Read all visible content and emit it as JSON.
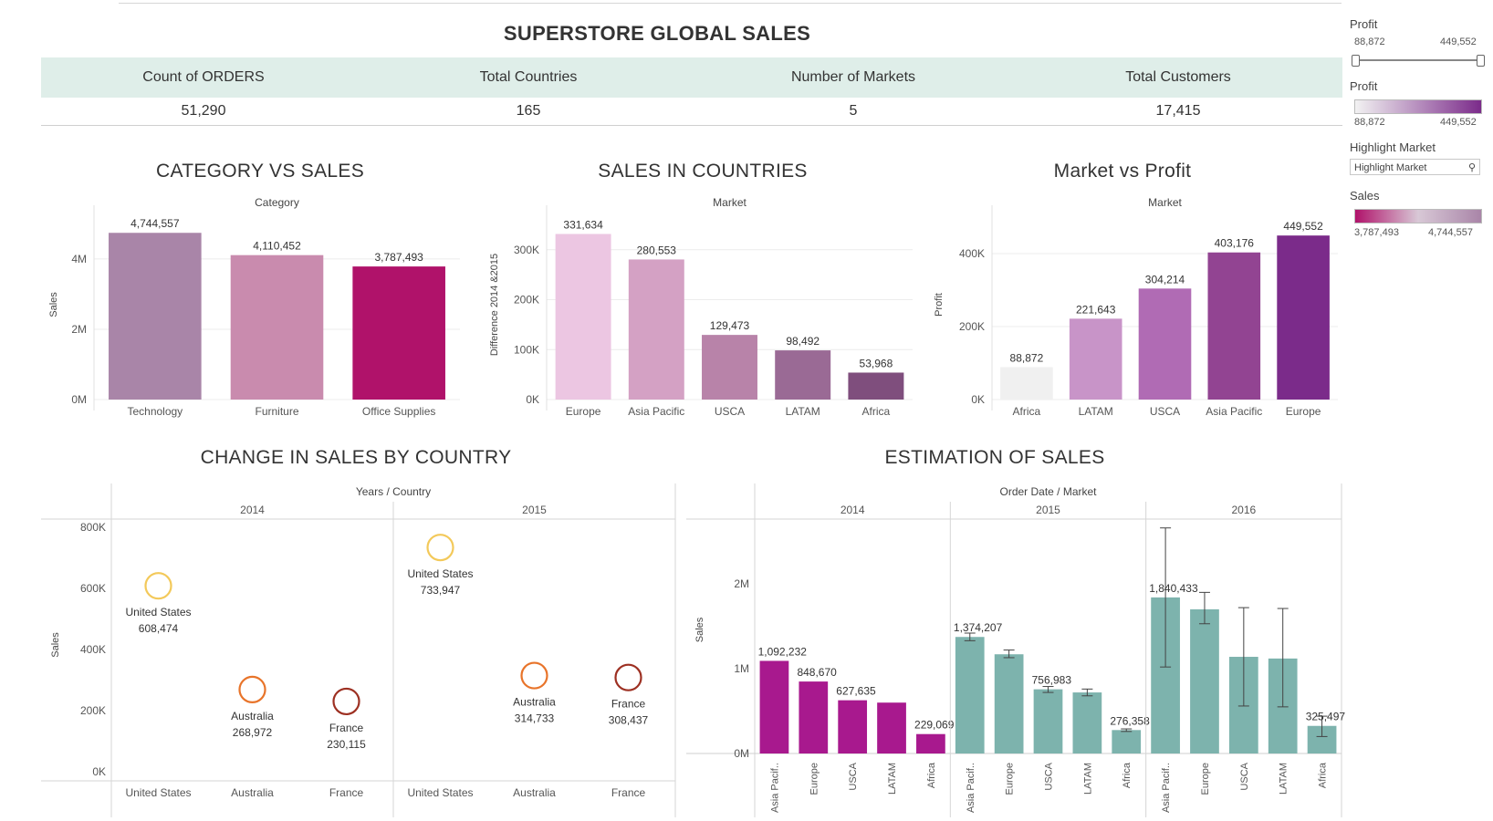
{
  "page": {
    "title": "SUPERSTORE GLOBAL SALES"
  },
  "kpis": [
    {
      "label": "Count of ORDERS",
      "value": "51,290"
    },
    {
      "label": "Total Countries",
      "value": "165"
    },
    {
      "label": "Number of Markets",
      "value": "5"
    },
    {
      "label": "Total Customers",
      "value": "17,415"
    }
  ],
  "filters": {
    "profit_slider": {
      "title": "Profit",
      "min_label": "88,872",
      "max_label": "449,552",
      "selected_min": 88872,
      "selected_max": 449552
    },
    "profit_legend": {
      "title": "Profit",
      "min_label": "88,872",
      "max_label": "449,552",
      "color_from": "#f2f2f2",
      "color_to": "#7b2b8a"
    },
    "highlight": {
      "title": "Highlight Market",
      "placeholder": "Highlight Market"
    },
    "sales_legend": {
      "title": "Sales",
      "min_label": "3,787,493",
      "max_label": "4,744,557",
      "color_from": "#b0126a",
      "color_to": "#a985a8"
    }
  },
  "colors": {
    "kpi_band": "#dfeee9",
    "category": [
      "#a985a8",
      "#c98bae",
      "#b0126a"
    ],
    "countries": [
      "#ecc6e2",
      "#d4a1c4",
      "#b883a9",
      "#9a6a95",
      "#7f4e7d"
    ],
    "market_profit": [
      "#f0f0f0",
      "#c894c8",
      "#b06bb4",
      "#924492",
      "#7b2b8a"
    ],
    "bubble": [
      "#f3c95a",
      "#e8742a",
      "#9d3022"
    ],
    "estimation_2014": "#a8198e",
    "estimation_other": "#7db3ad"
  },
  "chart_data": [
    {
      "id": "category",
      "type": "bar",
      "title": "CATEGORY VS SALES",
      "header": "Category",
      "ylabel": "Sales",
      "categories": [
        "Technology",
        "Furniture",
        "Office Supplies"
      ],
      "values": [
        4744557,
        4110452,
        3787493
      ],
      "value_labels": [
        "4,744,557",
        "4,110,452",
        "3,787,493"
      ],
      "ylim": [
        0,
        5400000
      ],
      "y_ticks": [
        0,
        2000000,
        4000000
      ],
      "y_tick_labels": [
        "0M",
        "2M",
        "4M"
      ],
      "grid": true
    },
    {
      "id": "countries",
      "type": "bar",
      "title": "SALES IN COUNTRIES",
      "header": "Market",
      "ylabel": "Difference 2014 &2015",
      "categories": [
        "Europe",
        "Asia Pacific",
        "USCA",
        "LATAM",
        "Africa"
      ],
      "values": [
        331634,
        280553,
        129473,
        98492,
        53968
      ],
      "value_labels": [
        "331,634",
        "280,553",
        "129,473",
        "98,492",
        "53,968"
      ],
      "ylim": [
        0,
        380000
      ],
      "y_ticks": [
        0,
        100000,
        200000,
        300000
      ],
      "y_tick_labels": [
        "0K",
        "100K",
        "200K",
        "300K"
      ],
      "grid": true
    },
    {
      "id": "market_profit",
      "type": "bar",
      "title": "Market vs Profit",
      "header": "Market",
      "ylabel": "Profit",
      "categories": [
        "Africa",
        "LATAM",
        "USCA",
        "Asia Pacific",
        "Europe"
      ],
      "values": [
        88872,
        221643,
        304214,
        403176,
        449552
      ],
      "value_labels": [
        "88,872",
        "221,643",
        "304,214",
        "403,176",
        "449,552"
      ],
      "ylim": [
        0,
        520000
      ],
      "y_ticks": [
        0,
        200000,
        400000
      ],
      "y_tick_labels": [
        "0K",
        "200K",
        "400K"
      ],
      "grid": true
    },
    {
      "id": "change",
      "type": "scatter",
      "title": "CHANGE IN SALES BY COUNTRY",
      "header": "Years / Country",
      "ylabel": "Sales",
      "panels": [
        {
          "year": "2014",
          "countries": [
            "United States",
            "Australia",
            "France"
          ],
          "values": [
            608474,
            268972,
            230115
          ],
          "value_labels": [
            "608,474",
            "268,972",
            "230,115"
          ]
        },
        {
          "year": "2015",
          "countries": [
            "United States",
            "Australia",
            "France"
          ],
          "values": [
            733947,
            314733,
            308437
          ],
          "value_labels": [
            "733,947",
            "314,733",
            "308,437"
          ]
        }
      ],
      "ylim": [
        0,
        830000
      ],
      "y_ticks": [
        0,
        200000,
        400000,
        600000,
        800000
      ],
      "y_tick_labels": [
        "0K",
        "200K",
        "400K",
        "600K",
        "800K"
      ],
      "grid": true
    },
    {
      "id": "estimation",
      "type": "bar",
      "title": "ESTIMATION OF SALES",
      "header": "Order Date / Market",
      "ylabel": "Sales",
      "panels": [
        {
          "year": "2014",
          "markets": [
            "Asia Pacif..",
            "Europe",
            "USCA",
            "LATAM",
            "Africa"
          ],
          "values": [
            1092232,
            848670,
            627635,
            600000,
            229069
          ],
          "value_labels": [
            "1,092,232",
            "848,670",
            "627,635",
            "",
            "229,069"
          ],
          "errors": null
        },
        {
          "year": "2015",
          "markets": [
            "Asia Pacif..",
            "Europe",
            "USCA",
            "LATAM",
            "Africa"
          ],
          "values": [
            1374207,
            1170000,
            756983,
            720000,
            276358
          ],
          "value_labels": [
            "1,374,207",
            "",
            "756,983",
            "",
            "276,358"
          ],
          "errors": [
            [
              1330000,
              1420000
            ],
            [
              1130000,
              1220000
            ],
            [
              720000,
              790000
            ],
            [
              680000,
              760000
            ],
            [
              260000,
              290000
            ]
          ]
        },
        {
          "year": "2016",
          "markets": [
            "Asia Pacif..",
            "Europe",
            "USCA",
            "LATAM",
            "Africa"
          ],
          "values": [
            1840433,
            1700000,
            1140000,
            1120000,
            325497
          ],
          "value_labels": [
            "1,840,433",
            "",
            "",
            "",
            "325,497"
          ],
          "errors": [
            [
              1020000,
              2660000
            ],
            [
              1530000,
              1900000
            ],
            [
              560000,
              1720000
            ],
            [
              550000,
              1710000
            ],
            [
              200000,
              440000
            ]
          ]
        }
      ],
      "ylim": [
        0,
        2700000
      ],
      "y_ticks": [
        0,
        1000000,
        2000000
      ],
      "y_tick_labels": [
        "0M",
        "1M",
        "2M"
      ],
      "grid": true
    }
  ]
}
